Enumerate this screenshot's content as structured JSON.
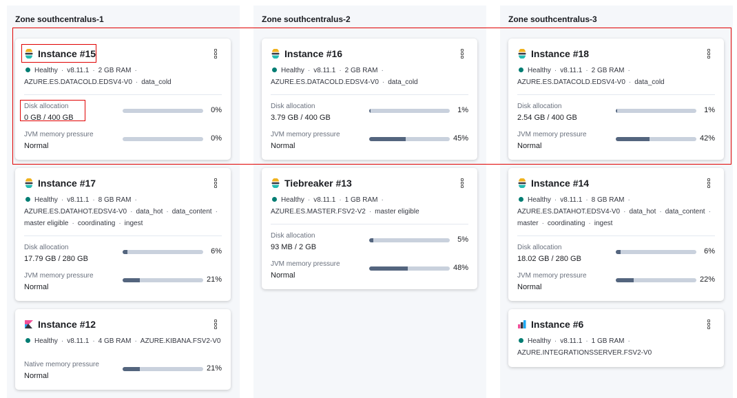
{
  "zones": [
    {
      "title": "Zone southcentralus-1",
      "cards": [
        {
          "icon": "elasticsearch",
          "title": "Instance #15",
          "meta": [
            [
              "Healthy",
              "v8.11.1",
              "2 GB RAM",
              ""
            ],
            [
              "AZURE.ES.DATACOLD.EDSV4-V0",
              "data_cold"
            ]
          ],
          "metrics": [
            {
              "label": "Disk allocation",
              "value": "0 GB / 400 GB",
              "pct": 0,
              "pct_label": "0%"
            },
            {
              "label": "JVM memory pressure",
              "value": "Normal",
              "pct": 0,
              "pct_label": "0%"
            }
          ]
        },
        {
          "icon": "elasticsearch",
          "title": "Instance #17",
          "meta": [
            [
              "Healthy",
              "v8.11.1",
              "8 GB RAM",
              ""
            ],
            [
              "AZURE.ES.DATAHOT.EDSV4-V0",
              "data_hot",
              "data_content",
              ""
            ],
            [
              "master eligible",
              "coordinating",
              "ingest"
            ]
          ],
          "metrics": [
            {
              "label": "Disk allocation",
              "value": "17.79 GB / 280 GB",
              "pct": 6,
              "pct_label": "6%"
            },
            {
              "label": "JVM memory pressure",
              "value": "Normal",
              "pct": 21,
              "pct_label": "21%"
            }
          ]
        },
        {
          "icon": "kibana",
          "title": "Instance #12",
          "meta": [
            [
              "Healthy",
              "v8.11.1",
              "4 GB RAM",
              "AZURE.KIBANA.FSV2-V0"
            ]
          ],
          "nodivider": true,
          "metrics": [
            {
              "label": "Native memory pressure",
              "value": "Normal",
              "pct": 21,
              "pct_label": "21%"
            }
          ]
        }
      ]
    },
    {
      "title": "Zone southcentralus-2",
      "cards": [
        {
          "icon": "elasticsearch",
          "title": "Instance #16",
          "meta": [
            [
              "Healthy",
              "v8.11.1",
              "2 GB RAM",
              ""
            ],
            [
              "AZURE.ES.DATACOLD.EDSV4-V0",
              "data_cold"
            ]
          ],
          "metrics": [
            {
              "label": "Disk allocation",
              "value": "3.79 GB / 400 GB",
              "pct": 1,
              "pct_label": "1%"
            },
            {
              "label": "JVM memory pressure",
              "value": "Normal",
              "pct": 45,
              "pct_label": "45%"
            }
          ]
        },
        {
          "icon": "elasticsearch",
          "title": "Tiebreaker #13",
          "meta": [
            [
              "Healthy",
              "v8.11.1",
              "1 GB RAM",
              ""
            ],
            [
              "AZURE.ES.MASTER.FSV2-V2",
              "master eligible"
            ]
          ],
          "metrics": [
            {
              "label": "Disk allocation",
              "value": "93 MB / 2 GB",
              "pct": 5,
              "pct_label": "5%"
            },
            {
              "label": "JVM memory pressure",
              "value": "Normal",
              "pct": 48,
              "pct_label": "48%"
            }
          ]
        }
      ]
    },
    {
      "title": "Zone southcentralus-3",
      "cards": [
        {
          "icon": "elasticsearch",
          "title": "Instance #18",
          "meta": [
            [
              "Healthy",
              "v8.11.1",
              "2 GB RAM",
              ""
            ],
            [
              "AZURE.ES.DATACOLD.EDSV4-V0",
              "data_cold"
            ]
          ],
          "metrics": [
            {
              "label": "Disk allocation",
              "value": "2.54 GB / 400 GB",
              "pct": 1,
              "pct_label": "1%"
            },
            {
              "label": "JVM memory pressure",
              "value": "Normal",
              "pct": 42,
              "pct_label": "42%"
            }
          ]
        },
        {
          "icon": "elasticsearch",
          "title": "Instance #14",
          "meta": [
            [
              "Healthy",
              "v8.11.1",
              "8 GB RAM",
              ""
            ],
            [
              "AZURE.ES.DATAHOT.EDSV4-V0",
              "data_hot",
              "data_content",
              ""
            ],
            [
              "master",
              "coordinating",
              "ingest"
            ]
          ],
          "metrics": [
            {
              "label": "Disk allocation",
              "value": "18.02 GB / 280 GB",
              "pct": 6,
              "pct_label": "6%"
            },
            {
              "label": "JVM memory pressure",
              "value": "Normal",
              "pct": 22,
              "pct_label": "22%"
            }
          ]
        },
        {
          "icon": "integrations",
          "title": "Instance #6",
          "meta": [
            [
              "Healthy",
              "v8.11.1",
              "1 GB RAM",
              ""
            ],
            [
              "AZURE.INTEGRATIONSSERVER.FSV2-V0"
            ]
          ],
          "metrics": []
        }
      ]
    }
  ],
  "colors": {
    "healthy": "#017d73",
    "bar_fill": "#54657e",
    "bar_track": "#c9d1dd",
    "highlight": "#e00000"
  }
}
